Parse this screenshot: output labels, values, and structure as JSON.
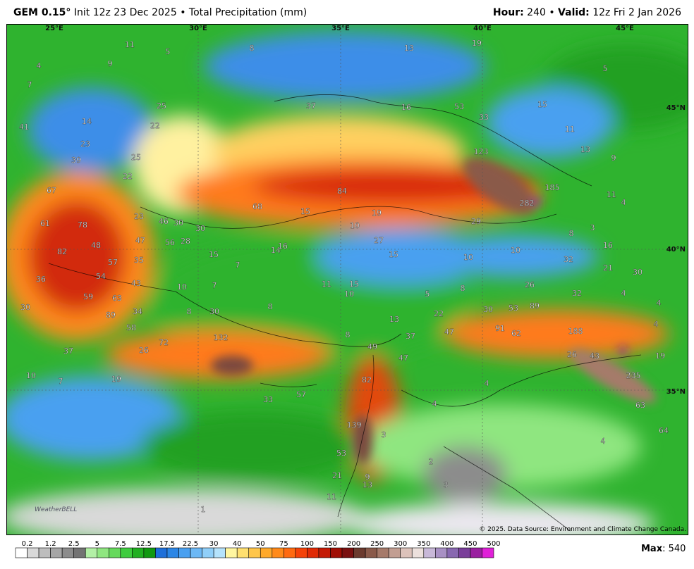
{
  "header": {
    "model": "GEM 0.15°",
    "init": "Init 12z 23 Dec 2025 • Total Precipitation (mm)",
    "hour_label": "Hour:",
    "hour": "240 •",
    "valid_label": "Valid:",
    "valid": "12z Fri 2 Jan 2026"
  },
  "map": {
    "lon_labels": [
      "25°E",
      "30°E",
      "35°E",
      "40°E",
      "45°E"
    ],
    "lat_labels": [
      "45°N",
      "40°N",
      "35°N"
    ],
    "labels": [
      11,
      5,
      9,
      8,
      13,
      19,
      5,
      4,
      7,
      14,
      25,
      22,
      41,
      23,
      37,
      16,
      53,
      33,
      15,
      11,
      13,
      9,
      39,
      25,
      22,
      123,
      185,
      67,
      84,
      11,
      4,
      68,
      282,
      15,
      19,
      61,
      78,
      23,
      46,
      30,
      30,
      10,
      29,
      8,
      3,
      47,
      56,
      28,
      27,
      16,
      82,
      48,
      15,
      14,
      16,
      15,
      10,
      10,
      32,
      21,
      30,
      57,
      35,
      36,
      54,
      43,
      7,
      10,
      7,
      11,
      15,
      26,
      32,
      4,
      4,
      59,
      63,
      10,
      5,
      8,
      30,
      8,
      89,
      34,
      8,
      30,
      22,
      30,
      53,
      89,
      4,
      58,
      13,
      47,
      91,
      62,
      188,
      132,
      8,
      37,
      72,
      26,
      37,
      49,
      47,
      26,
      43,
      19,
      10,
      7,
      19,
      82,
      4,
      235,
      57,
      33,
      4,
      63,
      139,
      3,
      64,
      4,
      53,
      2,
      3,
      21,
      9,
      13,
      11,
      1
    ],
    "logo": "WeatherBELL",
    "credit": "© 2025. Data Source: Environment and Climate Change Canada."
  },
  "legend": {
    "labels": [
      0.2,
      1.2,
      2.5,
      5,
      7.5,
      12.5,
      17.5,
      22.5,
      30,
      40,
      50,
      75,
      100,
      150,
      200,
      250,
      300,
      350,
      400,
      450,
      500
    ],
    "colors": [
      "#ffffff",
      "#d9d9d9",
      "#bdbdbd",
      "#a6a6a6",
      "#8c8c8c",
      "#737373",
      "#b3f0a6",
      "#8fe680",
      "#66d95c",
      "#3fcc3f",
      "#22b022",
      "#119911",
      "#1e6fd9",
      "#2b86e6",
      "#4aa0f0",
      "#6cb8f5",
      "#90cff9",
      "#b5e3fc",
      "#fff6a0",
      "#ffe070",
      "#ffc64a",
      "#ffa92b",
      "#ff8a1a",
      "#ff6a10",
      "#f54208",
      "#e02a05",
      "#c41a05",
      "#a00e05",
      "#7a1010",
      "#6b3a2e",
      "#8a5a4a",
      "#a67a6a",
      "#c29e92",
      "#dcc2ba",
      "#ece0dc",
      "#c8b8d8",
      "#a890c4",
      "#8868b0",
      "#7a3f9a",
      "#9a1fa0",
      "#e020d8"
    ]
  },
  "max": {
    "label": "Max",
    "value": ": 540"
  }
}
